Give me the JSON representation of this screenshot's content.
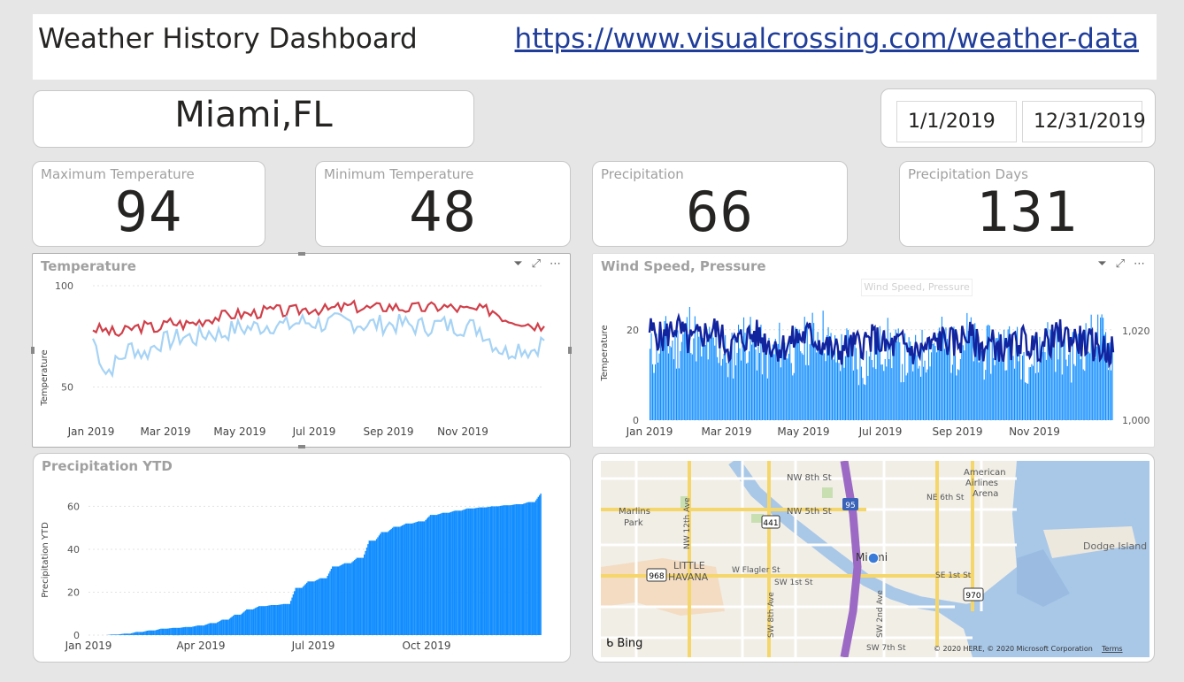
{
  "header": {
    "title": "Weather History Dashboard",
    "link": "https://www.visualcrossing.com/weather-data"
  },
  "location": {
    "city": "Miami,FL"
  },
  "date_range": {
    "start": "1/1/2019",
    "end": "12/31/2019"
  },
  "kpis": [
    {
      "label": "Maximum Temperature",
      "value": "94"
    },
    {
      "label": "Minimum Temperature",
      "value": "48"
    },
    {
      "label": "Precipitation",
      "value": "66"
    },
    {
      "label": "Precipitation Days",
      "value": "131"
    }
  ],
  "panels": {
    "temperature": {
      "title": "Temperature",
      "ylabel": "Temperature"
    },
    "wind": {
      "title": "Wind Speed, Pressure",
      "ylabel": "Temperature",
      "ghost": "Wind Speed, Pressure"
    },
    "precip": {
      "title": "Precipitation YTD",
      "ylabel": "Precipitation YTD"
    },
    "map": {
      "bing": "Bing",
      "copyright": "© 2020 HERE, © 2020 Microsoft Corporation",
      "terms": "Terms",
      "labels": [
        "NW 8th St",
        "NW 5th St",
        "Marlins",
        "Park",
        "American",
        "Airlines",
        "Arena",
        "NE 6th St",
        "Miami",
        "LITTLE",
        "HAVANA",
        "W Flagler St",
        "SW 1st St",
        "SE 1st St",
        "SW 7th St",
        "NW 12th Ave",
        "SW 8th Ave",
        "SW 2nd Ave",
        "Dodge Island"
      ],
      "shields": [
        "95",
        "441",
        "968",
        "970"
      ]
    }
  },
  "colors": {
    "accent": "#118dff",
    "max_line": "#d0404a",
    "min_line": "#a6d3f5",
    "pressure_line": "#12239e",
    "link": "#1f3d99"
  },
  "chart_data": [
    {
      "type": "line",
      "title": "Temperature",
      "ylabel": "Temperature",
      "x_ticks": [
        "Jan 2019",
        "Mar 2019",
        "May 2019",
        "Jul 2019",
        "Sep 2019",
        "Nov 2019"
      ],
      "y_ticks": [
        50,
        100
      ],
      "ylim": [
        45,
        100
      ],
      "series": [
        {
          "color": "#d0404a",
          "values": [
            79,
            78,
            76,
            79,
            80,
            79,
            82,
            81,
            82,
            84,
            85,
            86,
            86,
            87,
            88,
            87,
            88,
            89,
            88,
            89,
            90,
            89,
            89,
            90,
            89,
            89,
            89,
            90,
            89,
            88,
            88,
            88,
            84,
            83,
            81,
            80
          ]
        },
        {
          "color": "#a6d3f5",
          "values": [
            74,
            57,
            63,
            70,
            66,
            72,
            73,
            75,
            74,
            77,
            76,
            79,
            79,
            80,
            81,
            80,
            82,
            82,
            81,
            82,
            82,
            81,
            81,
            81,
            81,
            80,
            80,
            81,
            80,
            80,
            79,
            72,
            67,
            70,
            68,
            73
          ]
        }
      ]
    },
    {
      "type": "bar",
      "title": "Wind Speed, Pressure",
      "ylabel": "Temperature",
      "x_ticks": [
        "Jan 2019",
        "Mar 2019",
        "May 2019",
        "Jul 2019",
        "Sep 2019",
        "Nov 2019"
      ],
      "y_ticks": [
        0,
        20
      ],
      "y2_ticks": [
        "1,000",
        "1,020"
      ],
      "series": [
        {
          "color": "#118dff",
          "values": [
            14,
            18,
            16,
            21,
            15,
            17,
            13,
            19,
            16,
            14,
            17,
            15,
            18,
            20,
            14,
            16,
            12,
            15,
            17,
            14,
            13,
            16,
            18,
            15,
            19,
            14,
            16,
            17,
            15,
            13,
            18,
            16,
            14,
            17,
            19,
            15
          ]
        },
        {
          "color": "#12239e",
          "values": [
            20,
            18,
            21,
            17,
            19,
            20,
            16,
            18,
            19,
            17,
            16,
            18,
            19,
            17,
            15,
            16,
            17,
            18,
            16,
            17,
            15,
            16,
            18,
            17,
            19,
            16,
            17,
            15,
            18,
            16,
            17,
            19,
            18,
            17,
            16,
            15
          ]
        }
      ]
    },
    {
      "type": "bar",
      "title": "Precipitation YTD",
      "ylabel": "Precipitation YTD",
      "x_ticks": [
        "Jan 2019",
        "Apr 2019",
        "Jul 2019",
        "Oct 2019"
      ],
      "y_ticks": [
        0,
        20,
        40,
        60
      ],
      "ylim": [
        0,
        68
      ],
      "values": [
        0,
        0.3,
        0.7,
        1.5,
        2.2,
        3.0,
        3.4,
        3.8,
        4.5,
        5.6,
        7.2,
        9.5,
        12,
        13.5,
        14,
        14.5,
        22,
        25,
        26.5,
        32,
        33.5,
        36,
        44,
        48,
        50.5,
        52,
        53,
        56,
        57,
        58,
        59,
        59.5,
        60,
        60.5,
        61,
        62,
        66
      ]
    }
  ]
}
